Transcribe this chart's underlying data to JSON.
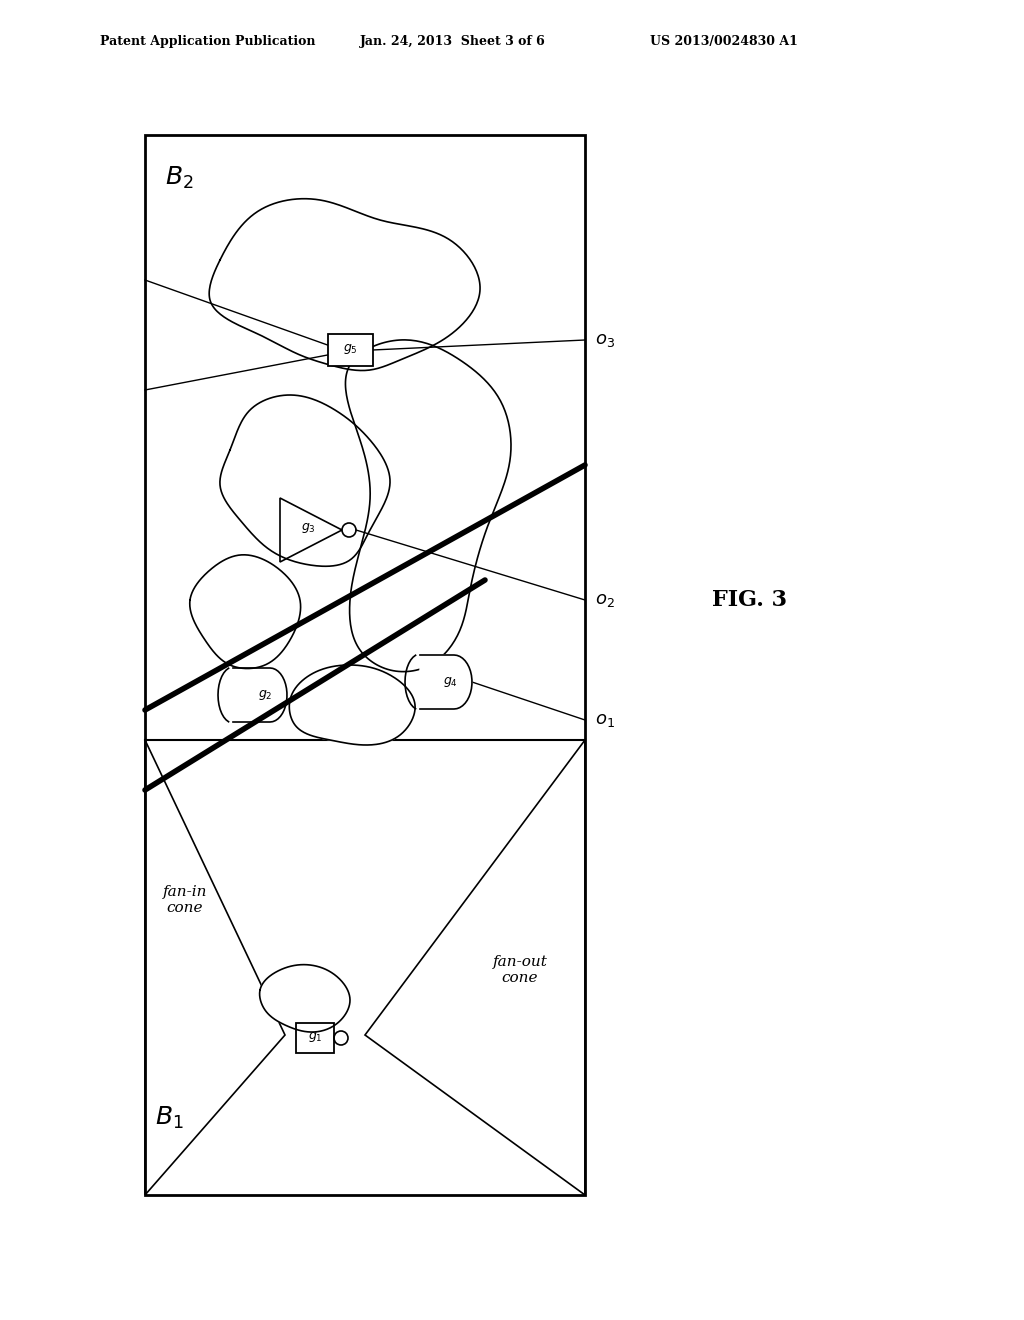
{
  "bg_color": "#ffffff",
  "border_color": "#000000",
  "title_header": "Patent Application Publication",
  "title_date": "Jan. 24, 2013  Sheet 3 of 6",
  "title_patent": "US 2013/0024830 A1",
  "fig_label": "FIG. 3",
  "B2_label": "B_2",
  "B1_label": "B_1",
  "o3_label": "o_3",
  "o2_label": "o_2",
  "o1_label": "o_1",
  "fan_in_cone": "fan-in\ncone",
  "fan_out_cone": "fan-out\ncone",
  "g_labels": [
    "g_1",
    "g_2",
    "g_3",
    "g_4",
    "g_5"
  ]
}
